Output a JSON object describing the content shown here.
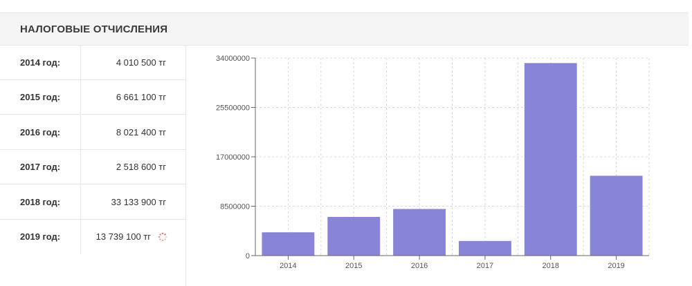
{
  "panel": {
    "title": "НАЛОГОВЫЕ ОТЧИСЛЕНИЯ"
  },
  "rows": [
    {
      "year": "2014 год:",
      "amount": "4 010 500 тг"
    },
    {
      "year": "2015 год:",
      "amount": "6 661 100 тг"
    },
    {
      "year": "2016 год:",
      "amount": "8 021 400 тг"
    },
    {
      "year": "2017 год:",
      "amount": "2 518 600 тг"
    },
    {
      "year": "2018 год:",
      "amount": "33 133 900 тг"
    },
    {
      "year": "2019 год:",
      "amount": "13 739 100 тг",
      "icon": "loading-spinner-icon"
    }
  ],
  "colors": {
    "bar": "#8884d8",
    "spinner": "#e85c5c",
    "grid": "#d9d9d9",
    "axis": "#666666"
  },
  "chart_data": {
    "type": "bar",
    "categories": [
      "2014",
      "2015",
      "2016",
      "2017",
      "2018",
      "2019"
    ],
    "values": [
      4010500,
      6661100,
      8021400,
      2518600,
      33133900,
      13739100
    ],
    "title": "",
    "xlabel": "",
    "ylabel": "",
    "ylim": [
      0,
      34000000
    ],
    "yticks": [
      0,
      8500000,
      17000000,
      25500000,
      34000000
    ],
    "grid": true,
    "legend": "none"
  }
}
